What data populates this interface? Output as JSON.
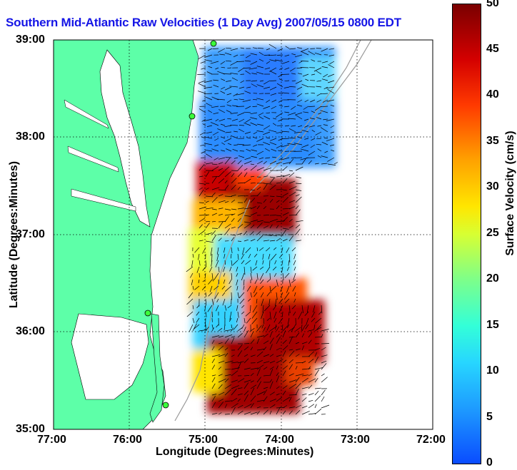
{
  "title": "Southern Mid-Atlantic Raw Velocities (1 Day Avg) 2007/05/15 0800 EDT",
  "x_label": "Longitude (Degrees:Minutes)",
  "y_label": "Latitude (Degrees:Minutes)",
  "colorbar_label": "Surface Velocity (cm/s)",
  "x_ticks": [
    "77:00",
    "76:00",
    "75:00",
    "74:00",
    "73:00",
    "72:00"
  ],
  "y_ticks": [
    "39:00",
    "38:00",
    "37:00",
    "36:00",
    "35:00"
  ],
  "colorbar_ticks": [
    "0",
    "5",
    "10",
    "15",
    "20",
    "25",
    "30",
    "35",
    "40",
    "45",
    "50"
  ],
  "colors": {
    "title": "#1515e6",
    "land": "#5dffa8",
    "grid": "#000000",
    "bathymetry": "#9a9a9a"
  }
}
